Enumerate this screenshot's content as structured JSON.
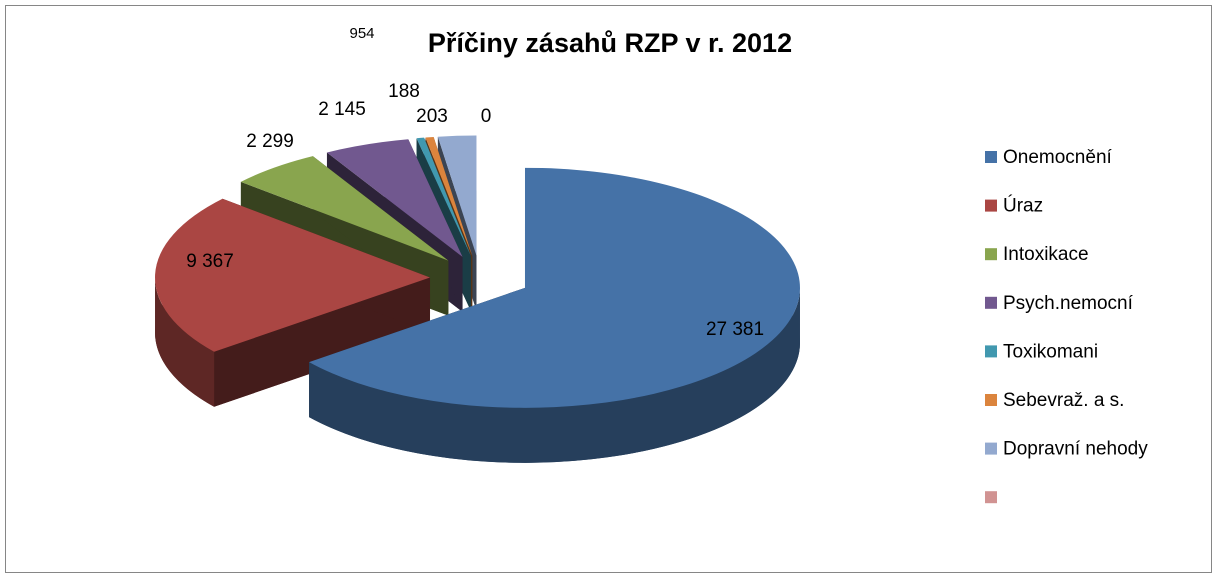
{
  "chart_data": {
    "type": "pie",
    "title": "Příčiny zásahů RZP v r. 2012",
    "categories": [
      "Onemocnění",
      "Úraz",
      "Intoxikace",
      "Psych.nemocní",
      "Toxikomani",
      "Sebevraž. a s.",
      "Dopravní nehody",
      null
    ],
    "values": [
      27381,
      9367,
      2299,
      2145,
      188,
      203,
      954,
      0
    ],
    "value_labels": [
      "27 381",
      "9 367",
      "2 299",
      "2 145",
      "188",
      "203",
      "954",
      "0"
    ],
    "colors": [
      "#4572a7",
      "#aa4643",
      "#89a54e",
      "#71588f",
      "#4198af",
      "#db843d",
      "#93a9cf",
      "#d19392"
    ],
    "legend": "right"
  }
}
